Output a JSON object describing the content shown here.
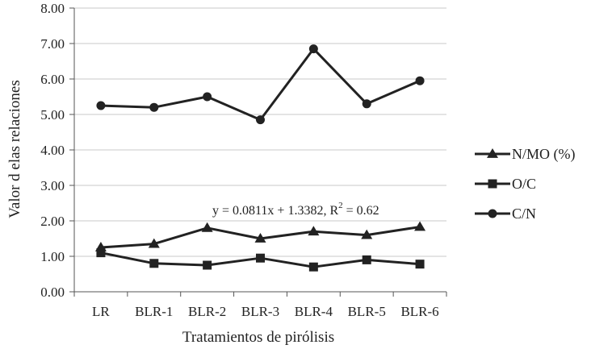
{
  "chart_data": {
    "type": "line",
    "categories": [
      "LR",
      "BLR-1",
      "BLR-2",
      "BLR-3",
      "BLR-4",
      "BLR-5",
      "BLR-6"
    ],
    "xlabel": "Tratamientos de pirólisis",
    "ylabel": "Valor d elas relaciones",
    "ylim": [
      0,
      8
    ],
    "yticks": [
      "0.00",
      "1.00",
      "2.00",
      "3.00",
      "4.00",
      "5.00",
      "6.00",
      "7.00",
      "8.00"
    ],
    "grid": true,
    "legend_position": "right",
    "series": [
      {
        "name": "N/MO (%)",
        "marker": "triangle",
        "color": "#222222",
        "values": [
          1.25,
          1.35,
          1.8,
          1.5,
          1.7,
          1.6,
          1.83
        ]
      },
      {
        "name": "O/C",
        "marker": "square",
        "color": "#222222",
        "values": [
          1.1,
          0.8,
          0.75,
          0.95,
          0.7,
          0.9,
          0.78
        ]
      },
      {
        "name": "C/N",
        "marker": "circle",
        "color": "#222222",
        "values": [
          5.25,
          5.2,
          5.5,
          4.85,
          6.85,
          5.3,
          5.95
        ]
      }
    ],
    "annotation": {
      "equation": "y = 0.0811x + 1.3382, R",
      "superscript": "2",
      "tail": " = 0.62"
    }
  }
}
